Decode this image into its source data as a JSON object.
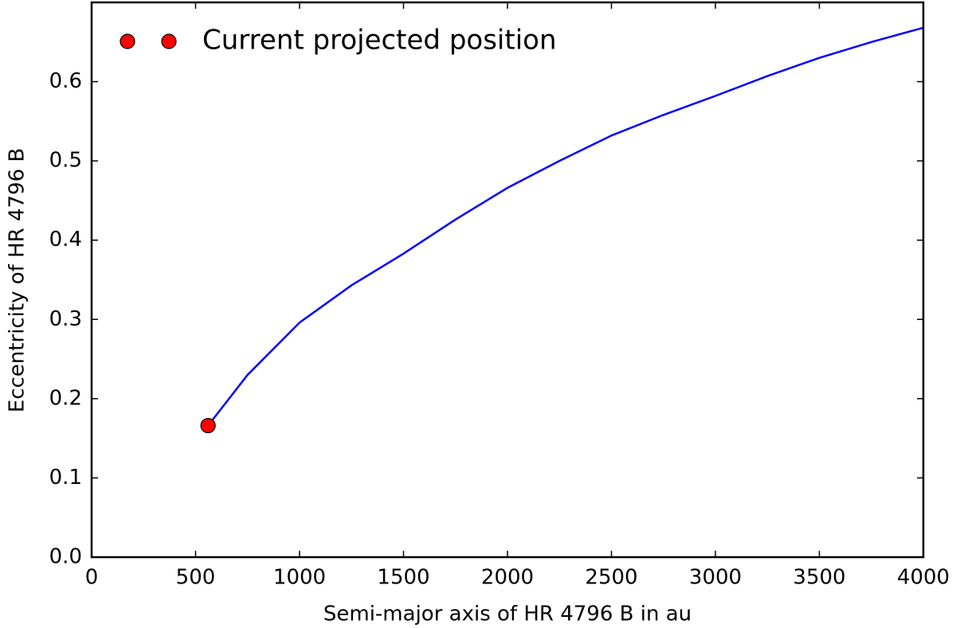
{
  "chart_data": {
    "type": "line",
    "xlabel": "Semi-major axis of HR 4796 B in au",
    "ylabel": "Eccentricity of HR 4796 B",
    "xlim": [
      0,
      4000
    ],
    "ylim": [
      0,
      0.7
    ],
    "xticks": [
      0,
      500,
      1000,
      1500,
      2000,
      2500,
      3000,
      3500,
      4000
    ],
    "yticks": [
      {
        "value": 0,
        "label": "0.0"
      },
      0.1,
      0.2,
      0.3,
      0.4,
      0.5,
      0.6
    ],
    "series": [
      {
        "color": "#0000ff",
        "x": [
          560,
          750,
          1000,
          1250,
          1500,
          1750,
          2000,
          2250,
          2500,
          2750,
          3000,
          3250,
          3500,
          3750,
          4000
        ],
        "values": [
          0.166,
          0.23,
          0.296,
          0.343,
          0.383,
          0.426,
          0.466,
          0.5,
          0.532,
          0.558,
          0.582,
          0.607,
          0.63,
          0.65,
          0.668
        ]
      }
    ],
    "points": {
      "name": "Current projected position",
      "color": "#ff0000",
      "x": [
        560
      ],
      "values": [
        0.166
      ]
    },
    "legend": "upper left"
  }
}
